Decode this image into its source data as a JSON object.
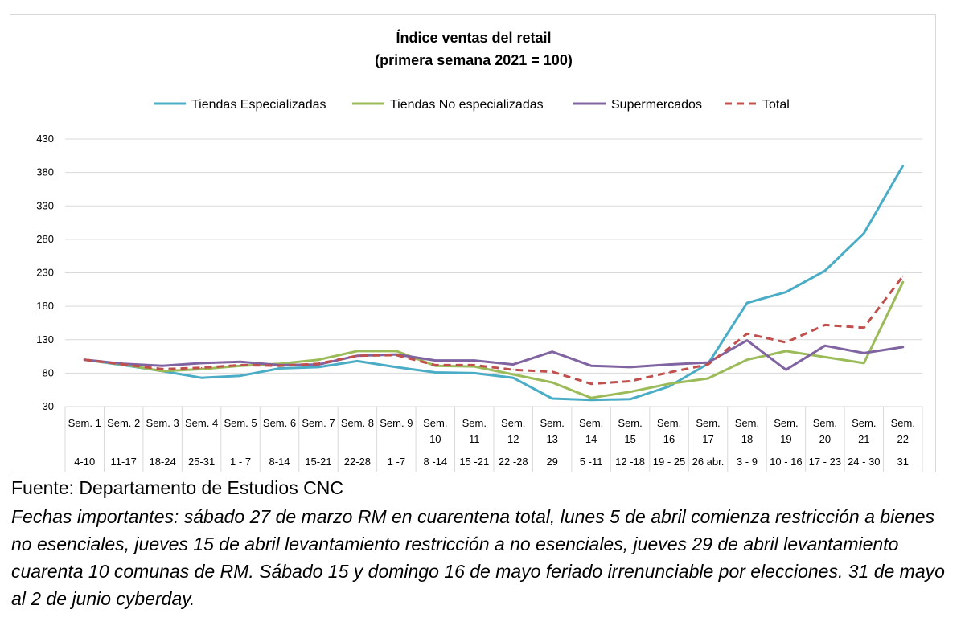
{
  "chart_data": {
    "type": "line",
    "title_line1": "Índice ventas del retail",
    "title_line2": "(primera semana 2021 = 100)",
    "xlabel": "",
    "ylabel": "",
    "ylim": [
      30,
      430
    ],
    "yticks": [
      30,
      80,
      130,
      180,
      230,
      280,
      330,
      380,
      430
    ],
    "grid": true,
    "legend_position": "top",
    "categories": [
      {
        "week": "Sem. 1",
        "dates": "4-10"
      },
      {
        "week": "Sem. 2",
        "dates": "11-17"
      },
      {
        "week": "Sem. 3",
        "dates": "18-24"
      },
      {
        "week": "Sem. 4",
        "dates": "25-31"
      },
      {
        "week": "Sem. 5",
        "dates": "1 - 7"
      },
      {
        "week": "Sem. 6",
        "dates": "8-14"
      },
      {
        "week": "Sem. 7",
        "dates": "15-21"
      },
      {
        "week": "Sem. 8",
        "dates": "22-28"
      },
      {
        "week": "Sem. 9",
        "dates": "1 -7"
      },
      {
        "week": "Sem. 10",
        "dates": "8 -14"
      },
      {
        "week": "Sem. 11",
        "dates": "15 -21"
      },
      {
        "week": "Sem. 12",
        "dates": "22 -28"
      },
      {
        "week": "Sem. 13",
        "dates": "29"
      },
      {
        "week": "Sem. 14",
        "dates": "5 -11"
      },
      {
        "week": "Sem. 15",
        "dates": "12 -18"
      },
      {
        "week": "Sem. 16",
        "dates": "19 - 25"
      },
      {
        "week": "Sem. 17",
        "dates": "26 abr."
      },
      {
        "week": "Sem. 18",
        "dates": "3 - 9"
      },
      {
        "week": "Sem. 19",
        "dates": "10 - 16"
      },
      {
        "week": "Sem. 20",
        "dates": "17 - 23"
      },
      {
        "week": "Sem. 21",
        "dates": "24 - 30"
      },
      {
        "week": "Sem. 22",
        "dates": "31"
      }
    ],
    "series": [
      {
        "name": "Tiendas Especializadas",
        "color": "#4bacc6",
        "dash": false,
        "values": [
          100,
          92,
          83,
          73,
          76,
          87,
          89,
          98,
          89,
          81,
          80,
          73,
          42,
          40,
          41,
          60,
          94,
          185,
          201,
          233,
          289,
          390
        ]
      },
      {
        "name": "Tiendas No especializadas",
        "color": "#9bbb59",
        "dash": false,
        "values": [
          100,
          93,
          83,
          86,
          91,
          94,
          100,
          113,
          113,
          91,
          90,
          78,
          66,
          43,
          52,
          64,
          72,
          100,
          113,
          104,
          95,
          216
        ]
      },
      {
        "name": "Supermercados",
        "color": "#8064a2",
        "dash": false,
        "values": [
          100,
          94,
          91,
          95,
          97,
          92,
          93,
          106,
          108,
          99,
          99,
          93,
          112,
          91,
          89,
          93,
          96,
          129,
          85,
          121,
          110,
          119
        ]
      },
      {
        "name": "Total",
        "color": "#c0504d",
        "dash": true,
        "values": [
          100,
          93,
          86,
          88,
          92,
          91,
          94,
          106,
          107,
          92,
          92,
          85,
          82,
          64,
          68,
          81,
          93,
          139,
          126,
          152,
          148,
          225
        ]
      }
    ]
  },
  "source": "Fuente: Departamento de Estudios CNC",
  "notes": "Fechas importantes: sábado 27 de marzo RM en cuarentena total, lunes 5 de abril comienza restricción a bienes no esenciales, jueves 15 de abril levantamiento restricción a no esenciales, jueves 29 de abril levantamiento cuarenta 10 comunas de RM. Sábado 15 y domingo 16 de mayo feriado irrenunciable por elecciones. 31 de mayo al 2 de junio cyberday."
}
